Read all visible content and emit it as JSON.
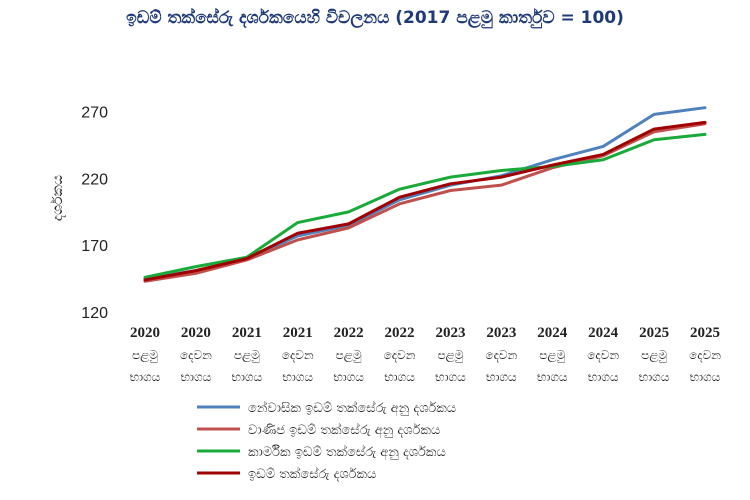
{
  "chart_data": {
    "type": "line",
    "title": "ඉඩම් තක්සේරු දර්ශකයෙහි විචලනය (2017 පළමු කාර්තුව = 100)",
    "ylabel": "දර්ශකය",
    "xlabel": "",
    "ylim": [
      120,
      290
    ],
    "yticks": [
      120,
      170,
      220,
      270
    ],
    "grid": false,
    "legend_position": "bottom",
    "categories": [
      {
        "year": "2020",
        "line1": "පළමු",
        "line2": "භාගය"
      },
      {
        "year": "2020",
        "line1": "දෙවන",
        "line2": "භාගය"
      },
      {
        "year": "2021",
        "line1": "පළමු",
        "line2": "භාගය"
      },
      {
        "year": "2021",
        "line1": "දෙවන",
        "line2": "භාගය"
      },
      {
        "year": "2022",
        "line1": "පළමු",
        "line2": "භාගය"
      },
      {
        "year": "2022",
        "line1": "දෙවන",
        "line2": "භාගය"
      },
      {
        "year": "2023",
        "line1": "පළමු",
        "line2": "භාගය"
      },
      {
        "year": "2023",
        "line1": "දෙවන",
        "line2": "භාගය"
      },
      {
        "year": "2024",
        "line1": "පළමු",
        "line2": "භාගය"
      },
      {
        "year": "2024",
        "line1": "දෙවන",
        "line2": "භාගය"
      },
      {
        "year": "2025",
        "line1": "පළමු",
        "line2": "භාගය"
      },
      {
        "year": "2025",
        "line1": "දෙවන",
        "line2": "භාගය"
      }
    ],
    "series": [
      {
        "name": "නේවාසික ඉඩම් තක්සේරු අනු දර්ශකය",
        "color": "#4f81bd",
        "values": [
          145,
          151,
          160,
          177,
          185,
          204,
          215,
          222,
          234,
          244,
          268,
          273
        ]
      },
      {
        "name": "වාණිජ ඉඩම් තක්සේරු අනු දර්ශකය",
        "color": "#c0504d",
        "values": [
          143,
          149,
          159,
          174,
          183,
          201,
          211,
          215,
          228,
          237,
          255,
          261
        ]
      },
      {
        "name": "කාර්මික ඉඩම් තක්සේරු අනු දර්ශකය",
        "color": "#1aaa3a",
        "values": [
          146,
          154,
          161,
          187,
          195,
          212,
          221,
          226,
          229,
          234,
          249,
          253
        ]
      },
      {
        "name": "ඉඩම් තක්සේරු දර්ශකය",
        "color": "#a00000",
        "values": [
          144,
          151,
          160,
          179,
          186,
          206,
          216,
          221,
          230,
          238,
          257,
          262
        ]
      }
    ]
  }
}
